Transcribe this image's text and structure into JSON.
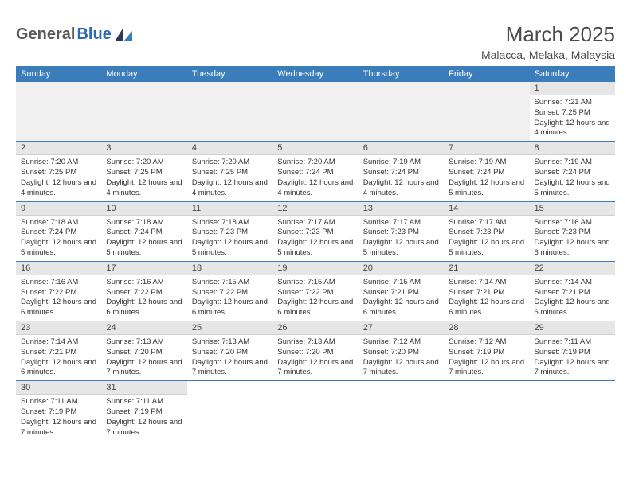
{
  "logo": {
    "text_dark": "General",
    "text_blue": "Blue"
  },
  "title": "March 2025",
  "location": "Malacca, Melaka, Malaysia",
  "colors": {
    "header_bg": "#3b7dbb",
    "header_fg": "#ffffff",
    "daynum_bg": "#e6e6e6",
    "row_border": "#3b7dbb",
    "blank_bg": "#f0f0f0",
    "logo_dark": "#5a5a5a",
    "logo_blue": "#2f6bb0"
  },
  "weekdays": [
    "Sunday",
    "Monday",
    "Tuesday",
    "Wednesday",
    "Thursday",
    "Friday",
    "Saturday"
  ],
  "weeks": [
    [
      null,
      null,
      null,
      null,
      null,
      null,
      {
        "n": "1",
        "sr": "Sunrise: 7:21 AM",
        "ss": "Sunset: 7:25 PM",
        "dl": "Daylight: 12 hours and 4 minutes."
      }
    ],
    [
      {
        "n": "2",
        "sr": "Sunrise: 7:20 AM",
        "ss": "Sunset: 7:25 PM",
        "dl": "Daylight: 12 hours and 4 minutes."
      },
      {
        "n": "3",
        "sr": "Sunrise: 7:20 AM",
        "ss": "Sunset: 7:25 PM",
        "dl": "Daylight: 12 hours and 4 minutes."
      },
      {
        "n": "4",
        "sr": "Sunrise: 7:20 AM",
        "ss": "Sunset: 7:25 PM",
        "dl": "Daylight: 12 hours and 4 minutes."
      },
      {
        "n": "5",
        "sr": "Sunrise: 7:20 AM",
        "ss": "Sunset: 7:24 PM",
        "dl": "Daylight: 12 hours and 4 minutes."
      },
      {
        "n": "6",
        "sr": "Sunrise: 7:19 AM",
        "ss": "Sunset: 7:24 PM",
        "dl": "Daylight: 12 hours and 4 minutes."
      },
      {
        "n": "7",
        "sr": "Sunrise: 7:19 AM",
        "ss": "Sunset: 7:24 PM",
        "dl": "Daylight: 12 hours and 5 minutes."
      },
      {
        "n": "8",
        "sr": "Sunrise: 7:19 AM",
        "ss": "Sunset: 7:24 PM",
        "dl": "Daylight: 12 hours and 5 minutes."
      }
    ],
    [
      {
        "n": "9",
        "sr": "Sunrise: 7:18 AM",
        "ss": "Sunset: 7:24 PM",
        "dl": "Daylight: 12 hours and 5 minutes."
      },
      {
        "n": "10",
        "sr": "Sunrise: 7:18 AM",
        "ss": "Sunset: 7:24 PM",
        "dl": "Daylight: 12 hours and 5 minutes."
      },
      {
        "n": "11",
        "sr": "Sunrise: 7:18 AM",
        "ss": "Sunset: 7:23 PM",
        "dl": "Daylight: 12 hours and 5 minutes."
      },
      {
        "n": "12",
        "sr": "Sunrise: 7:17 AM",
        "ss": "Sunset: 7:23 PM",
        "dl": "Daylight: 12 hours and 5 minutes."
      },
      {
        "n": "13",
        "sr": "Sunrise: 7:17 AM",
        "ss": "Sunset: 7:23 PM",
        "dl": "Daylight: 12 hours and 5 minutes."
      },
      {
        "n": "14",
        "sr": "Sunrise: 7:17 AM",
        "ss": "Sunset: 7:23 PM",
        "dl": "Daylight: 12 hours and 5 minutes."
      },
      {
        "n": "15",
        "sr": "Sunrise: 7:16 AM",
        "ss": "Sunset: 7:23 PM",
        "dl": "Daylight: 12 hours and 6 minutes."
      }
    ],
    [
      {
        "n": "16",
        "sr": "Sunrise: 7:16 AM",
        "ss": "Sunset: 7:22 PM",
        "dl": "Daylight: 12 hours and 6 minutes."
      },
      {
        "n": "17",
        "sr": "Sunrise: 7:16 AM",
        "ss": "Sunset: 7:22 PM",
        "dl": "Daylight: 12 hours and 6 minutes."
      },
      {
        "n": "18",
        "sr": "Sunrise: 7:15 AM",
        "ss": "Sunset: 7:22 PM",
        "dl": "Daylight: 12 hours and 6 minutes."
      },
      {
        "n": "19",
        "sr": "Sunrise: 7:15 AM",
        "ss": "Sunset: 7:22 PM",
        "dl": "Daylight: 12 hours and 6 minutes."
      },
      {
        "n": "20",
        "sr": "Sunrise: 7:15 AM",
        "ss": "Sunset: 7:21 PM",
        "dl": "Daylight: 12 hours and 6 minutes."
      },
      {
        "n": "21",
        "sr": "Sunrise: 7:14 AM",
        "ss": "Sunset: 7:21 PM",
        "dl": "Daylight: 12 hours and 6 minutes."
      },
      {
        "n": "22",
        "sr": "Sunrise: 7:14 AM",
        "ss": "Sunset: 7:21 PM",
        "dl": "Daylight: 12 hours and 6 minutes."
      }
    ],
    [
      {
        "n": "23",
        "sr": "Sunrise: 7:14 AM",
        "ss": "Sunset: 7:21 PM",
        "dl": "Daylight: 12 hours and 6 minutes."
      },
      {
        "n": "24",
        "sr": "Sunrise: 7:13 AM",
        "ss": "Sunset: 7:20 PM",
        "dl": "Daylight: 12 hours and 7 minutes."
      },
      {
        "n": "25",
        "sr": "Sunrise: 7:13 AM",
        "ss": "Sunset: 7:20 PM",
        "dl": "Daylight: 12 hours and 7 minutes."
      },
      {
        "n": "26",
        "sr": "Sunrise: 7:13 AM",
        "ss": "Sunset: 7:20 PM",
        "dl": "Daylight: 12 hours and 7 minutes."
      },
      {
        "n": "27",
        "sr": "Sunrise: 7:12 AM",
        "ss": "Sunset: 7:20 PM",
        "dl": "Daylight: 12 hours and 7 minutes."
      },
      {
        "n": "28",
        "sr": "Sunrise: 7:12 AM",
        "ss": "Sunset: 7:19 PM",
        "dl": "Daylight: 12 hours and 7 minutes."
      },
      {
        "n": "29",
        "sr": "Sunrise: 7:11 AM",
        "ss": "Sunset: 7:19 PM",
        "dl": "Daylight: 12 hours and 7 minutes."
      }
    ],
    [
      {
        "n": "30",
        "sr": "Sunrise: 7:11 AM",
        "ss": "Sunset: 7:19 PM",
        "dl": "Daylight: 12 hours and 7 minutes."
      },
      {
        "n": "31",
        "sr": "Sunrise: 7:11 AM",
        "ss": "Sunset: 7:19 PM",
        "dl": "Daylight: 12 hours and 7 minutes."
      },
      null,
      null,
      null,
      null,
      null
    ]
  ]
}
